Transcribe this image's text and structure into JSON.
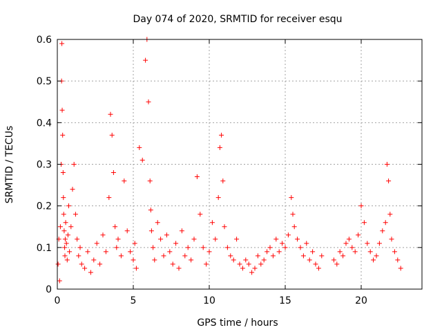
{
  "chart_data": {
    "type": "scatter",
    "title": "Day 074 of 2020, SRMTID for receiver esqu",
    "xlabel": "GPS time / hours",
    "ylabel": "SRMTID / TECUs",
    "xlim": [
      0,
      24
    ],
    "ylim": [
      0,
      0.6
    ],
    "xticks": [
      {
        "value": 0,
        "label": "0"
      },
      {
        "value": 5,
        "label": "5"
      },
      {
        "value": 10,
        "label": "10"
      },
      {
        "value": 15,
        "label": "15"
      },
      {
        "value": 20,
        "label": "20"
      }
    ],
    "yticks": [
      {
        "value": 0,
        "label": "0"
      },
      {
        "value": 0.1,
        "label": "0.1"
      },
      {
        "value": 0.2,
        "label": "0.2"
      },
      {
        "value": 0.3,
        "label": "0.3"
      },
      {
        "value": 0.4,
        "label": "0.4"
      },
      {
        "value": 0.5,
        "label": "0.5"
      },
      {
        "value": 0.6,
        "label": "0.6"
      }
    ],
    "grid": true,
    "marker": "plus",
    "color": "#ff0000",
    "series": [
      {
        "name": "SRMTID",
        "x": [
          0.05,
          0.1,
          0.15,
          0.2,
          0.25,
          0.28,
          0.3,
          0.32,
          0.35,
          0.38,
          0.4,
          0.42,
          0.45,
          0.48,
          0.5,
          0.52,
          0.55,
          0.6,
          0.65,
          0.7,
          0.75,
          0.8,
          0.9,
          1.0,
          1.1,
          1.2,
          1.3,
          1.4,
          1.5,
          1.6,
          1.8,
          2.0,
          2.2,
          2.4,
          2.6,
          2.8,
          3.0,
          3.2,
          3.4,
          3.5,
          3.6,
          3.7,
          3.8,
          3.9,
          4.0,
          4.2,
          4.4,
          4.6,
          4.8,
          5.0,
          5.1,
          5.2,
          5.4,
          5.6,
          5.8,
          5.9,
          6.0,
          6.1,
          6.15,
          6.2,
          6.3,
          6.4,
          6.6,
          6.8,
          7.0,
          7.2,
          7.4,
          7.6,
          7.8,
          8.0,
          8.2,
          8.4,
          8.6,
          8.8,
          9.0,
          9.2,
          9.4,
          9.6,
          9.8,
          10.0,
          10.2,
          10.4,
          10.6,
          10.7,
          10.8,
          10.9,
          11.0,
          11.2,
          11.4,
          11.6,
          11.8,
          12.0,
          12.2,
          12.4,
          12.6,
          12.8,
          13.0,
          13.2,
          13.4,
          13.6,
          13.8,
          14.0,
          14.2,
          14.4,
          14.6,
          14.8,
          15.0,
          15.2,
          15.4,
          15.5,
          15.6,
          15.8,
          16.0,
          16.2,
          16.4,
          16.6,
          16.8,
          17.0,
          17.2,
          17.4,
          18.2,
          18.4,
          18.6,
          18.8,
          19.0,
          19.2,
          19.4,
          19.6,
          19.8,
          20.0,
          20.2,
          20.4,
          20.6,
          20.8,
          21.0,
          21.2,
          21.4,
          21.6,
          21.7,
          21.8,
          21.9,
          22.0,
          22.2,
          22.4,
          22.6
        ],
        "y": [
          0.06,
          0.12,
          0.02,
          0.15,
          0.3,
          0.5,
          0.59,
          0.43,
          0.37,
          0.28,
          0.22,
          0.18,
          0.14,
          0.1,
          0.08,
          0.12,
          0.16,
          0.11,
          0.07,
          0.13,
          0.2,
          0.09,
          0.15,
          0.24,
          0.3,
          0.18,
          0.12,
          0.08,
          0.1,
          0.06,
          0.05,
          0.09,
          0.04,
          0.07,
          0.11,
          0.06,
          0.13,
          0.09,
          0.22,
          0.42,
          0.37,
          0.28,
          0.15,
          0.1,
          0.12,
          0.08,
          0.26,
          0.14,
          0.09,
          0.07,
          0.11,
          0.05,
          0.34,
          0.31,
          0.55,
          0.6,
          0.45,
          0.26,
          0.19,
          0.14,
          0.1,
          0.07,
          0.16,
          0.12,
          0.08,
          0.13,
          0.09,
          0.06,
          0.11,
          0.05,
          0.14,
          0.08,
          0.1,
          0.07,
          0.12,
          0.27,
          0.18,
          0.1,
          0.06,
          0.09,
          0.16,
          0.12,
          0.22,
          0.34,
          0.37,
          0.26,
          0.15,
          0.1,
          0.08,
          0.07,
          0.12,
          0.06,
          0.05,
          0.07,
          0.06,
          0.04,
          0.05,
          0.08,
          0.06,
          0.07,
          0.09,
          0.1,
          0.08,
          0.12,
          0.09,
          0.11,
          0.1,
          0.13,
          0.22,
          0.18,
          0.15,
          0.12,
          0.1,
          0.08,
          0.11,
          0.07,
          0.09,
          0.06,
          0.05,
          0.08,
          0.07,
          0.06,
          0.09,
          0.08,
          0.11,
          0.12,
          0.1,
          0.09,
          0.13,
          0.2,
          0.16,
          0.11,
          0.09,
          0.07,
          0.08,
          0.11,
          0.14,
          0.16,
          0.3,
          0.26,
          0.18,
          0.12,
          0.09,
          0.07,
          0.05
        ]
      }
    ]
  }
}
